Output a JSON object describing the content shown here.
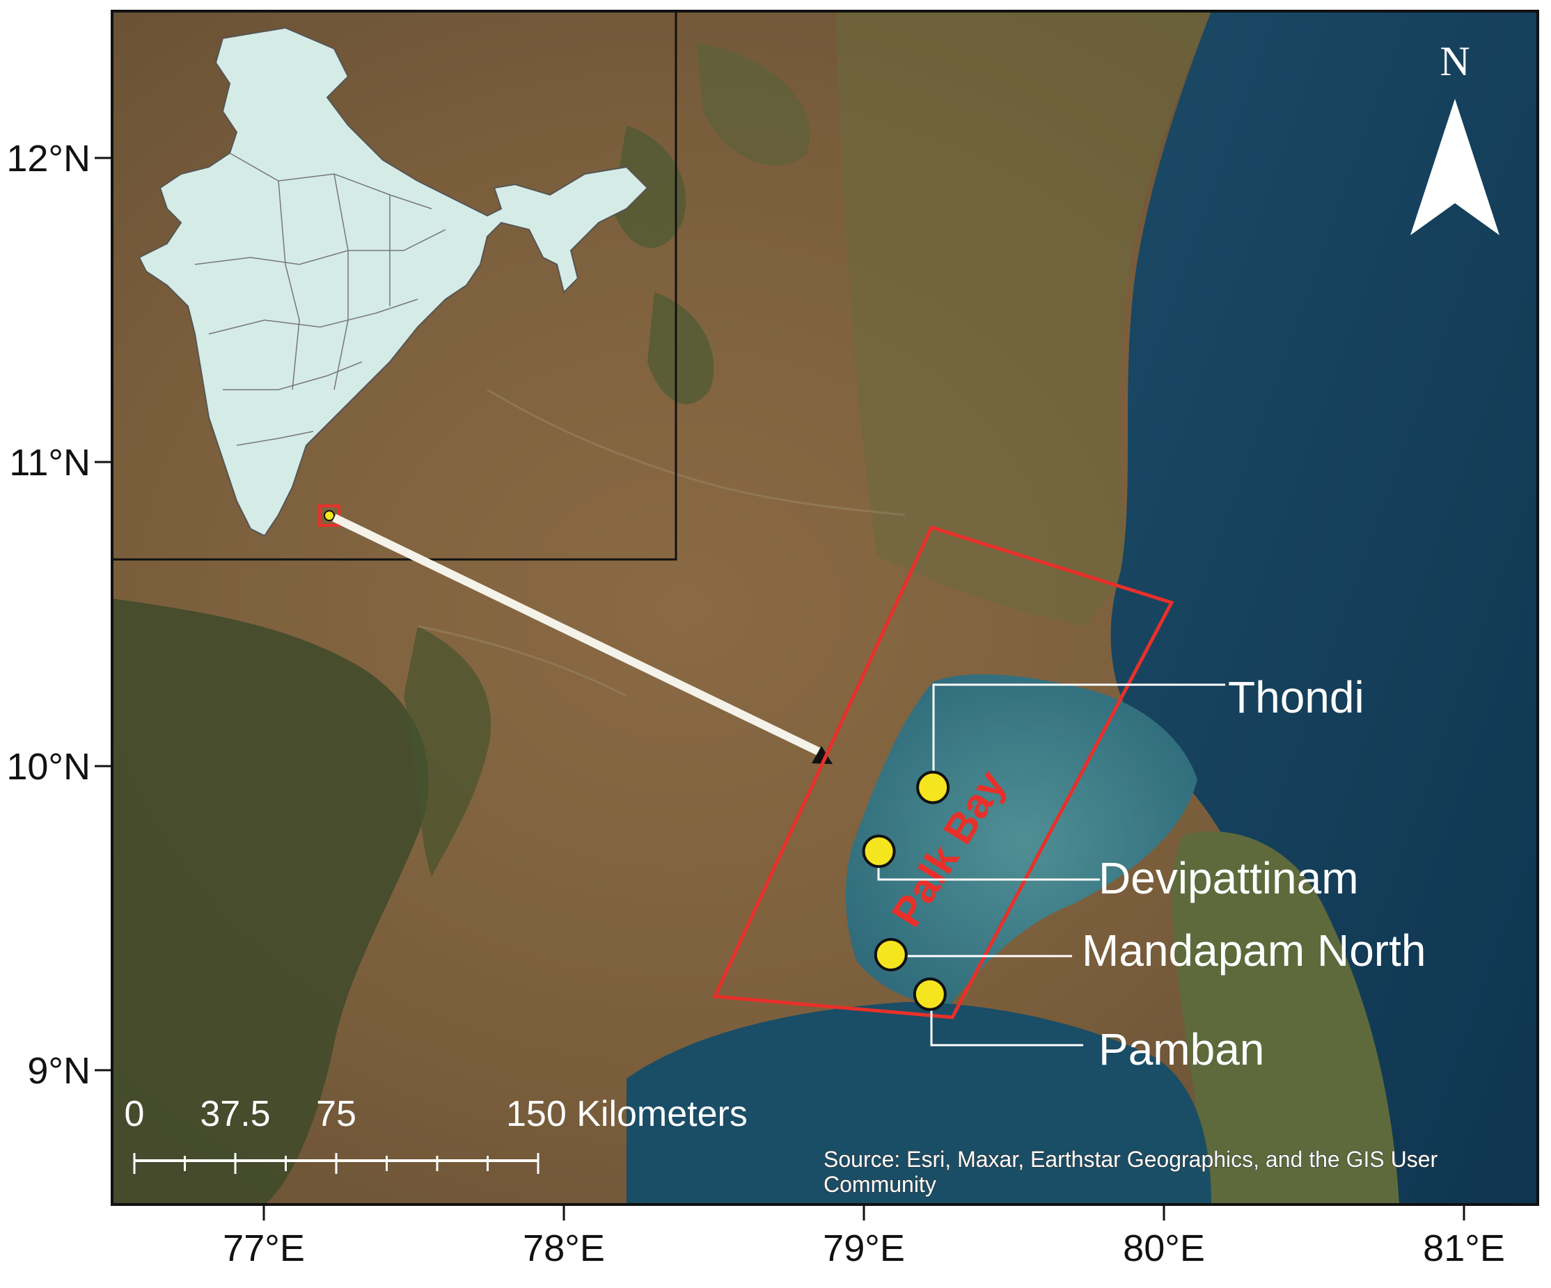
{
  "map": {
    "lat_ticks": [
      {
        "label": "12°N",
        "lat": 12
      },
      {
        "label": "11°N",
        "lat": 11
      },
      {
        "label": "10°N",
        "lat": 10
      },
      {
        "label": "9°N",
        "lat": 9
      }
    ],
    "lon_ticks": [
      {
        "label": "77°E",
        "lon": 77
      },
      {
        "label": "78°E",
        "lon": 78
      },
      {
        "label": "79°E",
        "lon": 79
      },
      {
        "label": "80°E",
        "lon": 80
      },
      {
        "label": "81°E",
        "lon": 81
      }
    ],
    "north_arrow": {
      "label": "N",
      "icon": "north-arrow-icon"
    },
    "study_area_label": "Palk Bay",
    "study_area_color": "#e8302a",
    "site_color": "#f5e51f",
    "sites": [
      {
        "name": "Thondi",
        "lat": 9.93,
        "lon": 79.23
      },
      {
        "name": "Devipattinam",
        "lat": 9.72,
        "lon": 79.05
      },
      {
        "name": "Mandapam North",
        "lat": 9.38,
        "lon": 79.09
      },
      {
        "name": "Pamban",
        "lat": 9.25,
        "lon": 79.22
      }
    ],
    "scale_bar": {
      "labels": [
        "0",
        "37.5",
        "75",
        "150 Kilometers"
      ]
    },
    "source": {
      "line1": "Source: Esri, Maxar, Earthstar Geographics, and the GIS User",
      "line2": "Community"
    },
    "inset": {
      "name": "India",
      "fill": "#d5ebe6"
    }
  }
}
